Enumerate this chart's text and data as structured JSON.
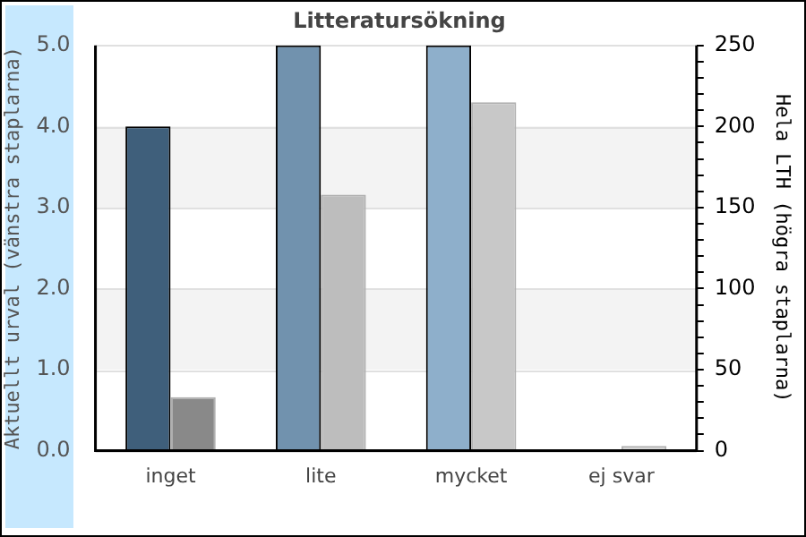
{
  "chart_data": {
    "type": "bar",
    "title": "Litteratursökning",
    "ylabel": "Aktuellt urval (vänstra staplarna)",
    "y2label": "Hela LTH (högra staplarna)",
    "categories": [
      "inget",
      "lite",
      "mycket",
      "ej svar"
    ],
    "series": [
      {
        "colors": [
          "#3f5f7b",
          "#7192ae",
          "#8eafcb",
          "#8eafcb"
        ],
        "values": [
          4.0,
          5.0,
          5.0,
          0
        ]
      },
      {
        "axis": "y2",
        "colors": [
          "#898989",
          "#bdbdbd",
          "#c8c8c8",
          "#d4d4d4"
        ],
        "values": [
          33,
          158,
          215,
          3
        ]
      }
    ],
    "ylim": [
      0,
      5.0
    ],
    "yticks": [
      {
        "value": 0,
        "label": "0.0"
      },
      {
        "value": 1,
        "label": "1.0"
      },
      {
        "value": 2,
        "label": "2.0"
      },
      {
        "value": 3,
        "label": "3.0"
      },
      {
        "value": 4,
        "label": "4.0"
      },
      {
        "value": 5,
        "label": "5.0"
      }
    ],
    "y2lim": [
      0,
      250
    ],
    "y2ticks": [
      0,
      {
        "value": 10,
        "label": null
      },
      {
        "value": 20,
        "label": null
      },
      {
        "value": 30,
        "label": null
      },
      {
        "value": 40,
        "label": null
      },
      50,
      {
        "value": 60,
        "label": null
      },
      {
        "value": 70,
        "label": null
      },
      {
        "value": 80,
        "label": null
      },
      {
        "value": 90,
        "label": null
      },
      100,
      {
        "value": 110,
        "label": null
      },
      {
        "value": 120,
        "label": null
      },
      {
        "value": 130,
        "label": null
      },
      {
        "value": 140,
        "label": null
      },
      150,
      {
        "value": 160,
        "label": null
      },
      {
        "value": 170,
        "label": null
      },
      {
        "value": 180,
        "label": null
      },
      {
        "value": 190,
        "label": null
      },
      200,
      {
        "value": 210,
        "label": null
      },
      {
        "value": 220,
        "label": null
      },
      {
        "value": 230,
        "label": null
      },
      {
        "value": 240,
        "label": null
      },
      250
    ],
    "bands": [
      {
        "axis": "y",
        "from": 1,
        "to": 2,
        "color": "#f3f3f3"
      },
      {
        "axis": "y",
        "from": 3,
        "to": 4,
        "color": "#f3f3f3"
      }
    ],
    "grid": "y",
    "legend": false
  }
}
